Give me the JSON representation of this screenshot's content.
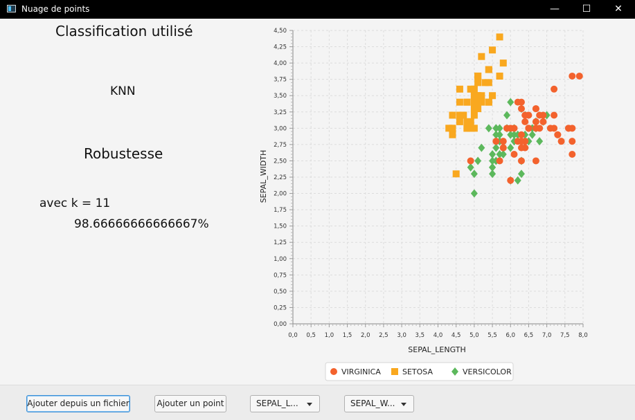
{
  "window": {
    "title": "Nuage de points",
    "minimize": "—",
    "maximize": "☐",
    "close": "✕"
  },
  "left_panel": {
    "classification_heading": "Classification utilisé",
    "algorithm": "KNN",
    "robustness_heading": "Robustesse",
    "k_label": "avec k = 11",
    "robustness_value": "98.66666666666667%"
  },
  "toolbar": {
    "add_file_label": "Ajouter depuis  un fichier",
    "add_point_label": "Ajouter un point",
    "x_axis_select": "SEPAL_L...",
    "y_axis_select": "SEPAL_W..."
  },
  "chart_data": {
    "type": "scatter",
    "xlabel": "SEPAL_LENGTH",
    "ylabel": "SEPAL_WIDTH",
    "xlim": [
      0,
      8
    ],
    "ylim": [
      0,
      4.5
    ],
    "grid": true,
    "legend_position": "bottom",
    "x_ticks": [
      "0,0",
      "0,5",
      "1,0",
      "1,5",
      "2,0",
      "2,5",
      "3,0",
      "3,5",
      "4,0",
      "4,5",
      "5,0",
      "5,5",
      "6,0",
      "6,5",
      "7,0",
      "7,5",
      "8,0"
    ],
    "y_ticks": [
      "0,00",
      "0,25",
      "0,50",
      "0,75",
      "1,00",
      "1,25",
      "1,50",
      "1,75",
      "2,00",
      "2,25",
      "2,50",
      "2,75",
      "3,00",
      "3,25",
      "3,50",
      "3,75",
      "4,00",
      "4,25",
      "4,50"
    ],
    "series": [
      {
        "name": "VIRGINICA",
        "color": "#f3622d",
        "marker": "circle",
        "points": [
          [
            6.3,
            3.3
          ],
          [
            5.8,
            2.7
          ],
          [
            7.1,
            3.0
          ],
          [
            6.3,
            2.9
          ],
          [
            6.5,
            3.0
          ],
          [
            7.6,
            3.0
          ],
          [
            4.9,
            2.5
          ],
          [
            7.3,
            2.9
          ],
          [
            6.7,
            2.5
          ],
          [
            7.2,
            3.6
          ],
          [
            6.5,
            3.2
          ],
          [
            6.4,
            2.7
          ],
          [
            6.8,
            3.0
          ],
          [
            5.7,
            2.5
          ],
          [
            5.8,
            2.8
          ],
          [
            6.4,
            3.2
          ],
          [
            6.5,
            3.0
          ],
          [
            7.7,
            3.8
          ],
          [
            7.7,
            2.6
          ],
          [
            6.0,
            2.2
          ],
          [
            6.9,
            3.2
          ],
          [
            5.6,
            2.8
          ],
          [
            7.7,
            2.8
          ],
          [
            6.3,
            2.7
          ],
          [
            6.7,
            3.3
          ],
          [
            7.2,
            3.2
          ],
          [
            6.2,
            2.8
          ],
          [
            6.1,
            3.0
          ],
          [
            6.4,
            2.8
          ],
          [
            7.2,
            3.0
          ],
          [
            7.4,
            2.8
          ],
          [
            7.9,
            3.8
          ],
          [
            6.4,
            2.8
          ],
          [
            6.3,
            2.8
          ],
          [
            6.1,
            2.6
          ],
          [
            7.7,
            3.0
          ],
          [
            6.3,
            3.4
          ],
          [
            6.4,
            3.1
          ],
          [
            6.0,
            3.0
          ],
          [
            6.9,
            3.1
          ],
          [
            6.7,
            3.1
          ],
          [
            5.8,
            2.7
          ],
          [
            6.8,
            3.2
          ],
          [
            6.7,
            3.3
          ],
          [
            6.7,
            3.0
          ],
          [
            6.3,
            2.5
          ],
          [
            6.5,
            3.0
          ],
          [
            6.2,
            3.4
          ],
          [
            5.9,
            3.0
          ],
          [
            7.3,
            2.9
          ],
          [
            7.6,
            3.0
          ]
        ]
      },
      {
        "name": "SETOSA",
        "color": "#f9a81f",
        "marker": "square",
        "points": [
          [
            5.1,
            3.5
          ],
          [
            4.9,
            3.0
          ],
          [
            4.7,
            3.2
          ],
          [
            4.6,
            3.1
          ],
          [
            5.0,
            3.6
          ],
          [
            5.4,
            3.9
          ],
          [
            4.6,
            3.4
          ],
          [
            5.0,
            3.4
          ],
          [
            4.4,
            2.9
          ],
          [
            4.9,
            3.1
          ],
          [
            5.4,
            3.7
          ],
          [
            4.8,
            3.4
          ],
          [
            4.8,
            3.0
          ],
          [
            4.3,
            3.0
          ],
          [
            5.8,
            4.0
          ],
          [
            5.7,
            4.4
          ],
          [
            5.4,
            3.9
          ],
          [
            5.1,
            3.5
          ],
          [
            5.7,
            3.8
          ],
          [
            5.1,
            3.8
          ],
          [
            5.4,
            3.4
          ],
          [
            5.1,
            3.7
          ],
          [
            4.6,
            3.6
          ],
          [
            5.1,
            3.3
          ],
          [
            4.8,
            3.4
          ],
          [
            5.0,
            3.0
          ],
          [
            5.0,
            3.4
          ],
          [
            5.2,
            3.5
          ],
          [
            5.2,
            3.4
          ],
          [
            4.7,
            3.2
          ],
          [
            4.8,
            3.1
          ],
          [
            5.4,
            3.4
          ],
          [
            5.2,
            4.1
          ],
          [
            5.5,
            4.2
          ],
          [
            4.9,
            3.1
          ],
          [
            5.0,
            3.2
          ],
          [
            5.5,
            3.5
          ],
          [
            4.9,
            3.6
          ],
          [
            4.4,
            3.0
          ],
          [
            5.1,
            3.4
          ],
          [
            5.0,
            3.5
          ],
          [
            4.5,
            2.3
          ],
          [
            4.4,
            3.2
          ],
          [
            5.0,
            3.5
          ],
          [
            5.1,
            3.8
          ],
          [
            4.8,
            3.0
          ],
          [
            5.1,
            3.8
          ],
          [
            4.6,
            3.2
          ],
          [
            5.3,
            3.7
          ],
          [
            5.0,
            3.3
          ],
          [
            5.7,
            3.8
          ]
        ]
      },
      {
        "name": "VERSICOLOR",
        "color": "#5cb85c",
        "marker": "diamond",
        "points": [
          [
            7.0,
            3.2
          ],
          [
            6.4,
            3.2
          ],
          [
            6.9,
            3.1
          ],
          [
            5.5,
            2.3
          ],
          [
            6.5,
            2.8
          ],
          [
            5.7,
            2.8
          ],
          [
            6.3,
            3.3
          ],
          [
            4.9,
            2.4
          ],
          [
            6.6,
            2.9
          ],
          [
            5.2,
            2.7
          ],
          [
            5.0,
            2.0
          ],
          [
            5.9,
            3.0
          ],
          [
            6.0,
            2.2
          ],
          [
            6.1,
            2.9
          ],
          [
            5.6,
            2.9
          ],
          [
            6.7,
            3.1
          ],
          [
            5.6,
            3.0
          ],
          [
            5.8,
            2.7
          ],
          [
            6.2,
            2.2
          ],
          [
            5.6,
            2.5
          ],
          [
            5.9,
            3.2
          ],
          [
            6.1,
            2.8
          ],
          [
            6.3,
            2.5
          ],
          [
            6.1,
            2.8
          ],
          [
            6.4,
            2.9
          ],
          [
            6.6,
            3.0
          ],
          [
            6.8,
            2.8
          ],
          [
            6.7,
            3.0
          ],
          [
            6.0,
            2.9
          ],
          [
            5.7,
            2.6
          ],
          [
            5.5,
            2.4
          ],
          [
            5.5,
            2.4
          ],
          [
            5.8,
            2.7
          ],
          [
            6.0,
            2.7
          ],
          [
            5.4,
            3.0
          ],
          [
            6.0,
            3.4
          ],
          [
            6.7,
            3.1
          ],
          [
            6.3,
            2.3
          ],
          [
            5.6,
            3.0
          ],
          [
            5.5,
            2.5
          ],
          [
            5.5,
            2.6
          ],
          [
            6.1,
            3.0
          ],
          [
            5.8,
            2.6
          ],
          [
            5.0,
            2.3
          ],
          [
            5.6,
            2.7
          ],
          [
            5.7,
            3.0
          ],
          [
            5.7,
            2.9
          ],
          [
            6.2,
            2.9
          ],
          [
            5.1,
            2.5
          ],
          [
            5.7,
            2.8
          ]
        ]
      }
    ]
  }
}
